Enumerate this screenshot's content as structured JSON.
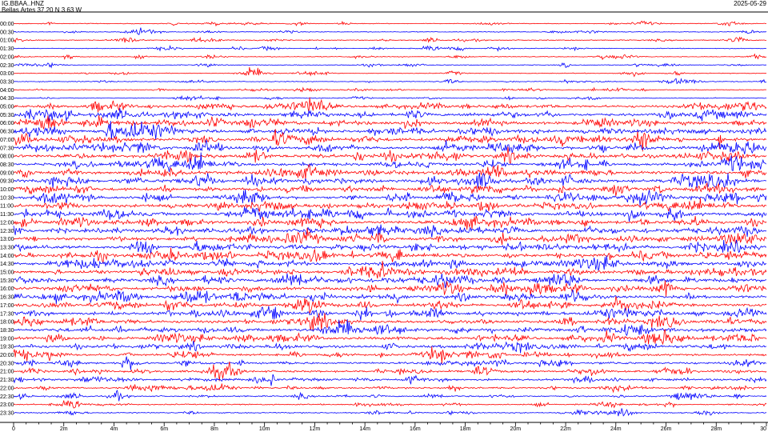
{
  "header": {
    "station": "IG.BBAA..HNZ",
    "location": "Bellas Artes  37.20 N 3.63 W",
    "date": "2025-05-29"
  },
  "chart_data": {
    "type": "line",
    "description_kind": "helicorder",
    "rows": [
      "00:00",
      "00:30",
      "01:00",
      "01:30",
      "02:00",
      "02:30",
      "03:00",
      "03:30",
      "04:00",
      "04:30",
      "05:00",
      "05:30",
      "06:00",
      "06:30",
      "07:00",
      "07:30",
      "08:00",
      "08:30",
      "09:00",
      "09:30",
      "10:00",
      "10:30",
      "11:00",
      "11:30",
      "12:00",
      "12:30",
      "13:00",
      "13:30",
      "14:00",
      "14:30",
      "15:00",
      "15:30",
      "16:00",
      "16:30",
      "17:00",
      "17:30",
      "18:00",
      "18:30",
      "19:00",
      "19:30",
      "20:00",
      "20:30",
      "21:00",
      "21:30",
      "22:00",
      "22:30",
      "23:00",
      "23:30"
    ],
    "trace_colors": [
      "#ff0000",
      "#0000ff"
    ],
    "x_tick_labels": [
      "0",
      "2m",
      "4m",
      "6m",
      "8m",
      "10m",
      "12m",
      "14m",
      "16m",
      "18m",
      "20m",
      "22m",
      "24m",
      "26m",
      "28m",
      "30"
    ],
    "xlim": [
      0,
      30
    ],
    "activity_level": [
      0.12,
      0.14,
      0.16,
      0.13,
      0.14,
      0.12,
      0.13,
      0.15,
      0.14,
      0.18,
      0.72,
      0.78,
      0.82,
      0.85,
      0.86,
      0.88,
      0.88,
      0.86,
      0.9,
      0.9,
      0.88,
      0.86,
      0.9,
      0.9,
      0.88,
      0.9,
      0.86,
      0.88,
      0.86,
      0.85,
      0.85,
      0.86,
      0.84,
      0.84,
      0.82,
      0.8,
      0.8,
      0.82,
      0.76,
      0.7,
      0.6,
      0.56,
      0.55,
      0.5,
      0.42,
      0.32,
      0.28,
      0.22
    ]
  }
}
